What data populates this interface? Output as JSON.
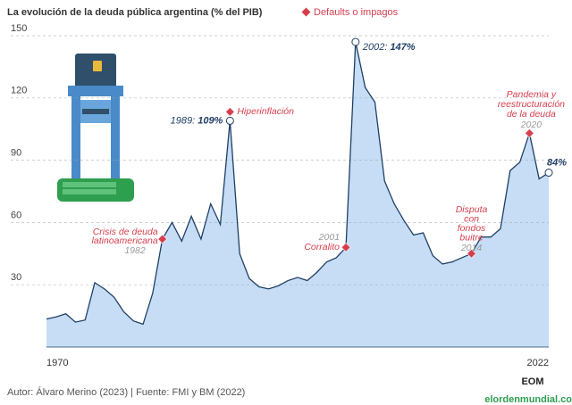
{
  "chart_data": {
    "type": "area",
    "title": "La evolución de la deuda pública argentina (% del PIB)",
    "x": [
      1970,
      1971,
      1972,
      1973,
      1974,
      1975,
      1976,
      1977,
      1978,
      1979,
      1980,
      1981,
      1982,
      1983,
      1984,
      1985,
      1986,
      1987,
      1988,
      1989,
      1990,
      1991,
      1992,
      1993,
      1994,
      1995,
      1996,
      1997,
      1998,
      1999,
      2000,
      2001,
      2002,
      2003,
      2004,
      2005,
      2006,
      2007,
      2008,
      2009,
      2010,
      2011,
      2012,
      2013,
      2014,
      2015,
      2016,
      2017,
      2018,
      2019,
      2020,
      2021,
      2022
    ],
    "series": [
      {
        "color": "#1f3f66",
        "fill": "#c6ddf5",
        "values": [
          13.5,
          14.5,
          16,
          12,
          13,
          31,
          28,
          24,
          17,
          12.6,
          11,
          26,
          52,
          60,
          51,
          63,
          52,
          69,
          59,
          109,
          45,
          33,
          29,
          28,
          29.5,
          32,
          33.5,
          32,
          36,
          41,
          43,
          48,
          147,
          125,
          118,
          80,
          69,
          61,
          54,
          55,
          44,
          40,
          41,
          43,
          45,
          53,
          53,
          57,
          85,
          89,
          103,
          81,
          84
        ],
        "value_labels": [
          null,
          null,
          null,
          null,
          null,
          null,
          null,
          null,
          null,
          null,
          null,
          null,
          null,
          null,
          null,
          null,
          null,
          null,
          null,
          "109%",
          null,
          null,
          null,
          null,
          null,
          null,
          null,
          null,
          null,
          null,
          null,
          null,
          "147%",
          null,
          null,
          null,
          null,
          null,
          null,
          null,
          null,
          null,
          null,
          null,
          null,
          null,
          null,
          null,
          null,
          null,
          null,
          null,
          "84%"
        ]
      }
    ],
    "peak_years": [
      {
        "x": 1989,
        "text": "1989:"
      },
      {
        "x": 2002,
        "text": "2002:"
      }
    ],
    "defaults": {
      "name": "Defaults o impagos",
      "color": "#d6404e",
      "annotations": [
        {
          "x": 1982,
          "lines": [
            "Crisis de deuda",
            "latinoamericana"
          ],
          "year": "1982"
        },
        {
          "x": 1989,
          "lines": [
            "Hiperinflación"
          ]
        },
        {
          "x": 2001,
          "lines": [
            "Corralito"
          ],
          "year": "2001"
        },
        {
          "x": 2014,
          "lines": [
            "Disputa",
            "con",
            "fondos",
            "buitre"
          ],
          "year": "2014"
        },
        {
          "x": 2020,
          "lines": [
            "Pandemia y",
            "reestructuración",
            "de la deuda"
          ],
          "year": "2020"
        }
      ]
    },
    "xlim": [
      1970,
      2022
    ],
    "xticks": [
      1970,
      2022
    ],
    "ylim": [
      0,
      150
    ],
    "yticks": [
      30,
      60,
      90,
      120,
      150
    ],
    "grid": true
  },
  "source": "Autor: Álvaro Merino (2023) | Fuente: FMI y BM (2022)",
  "logo": {
    "mark": "EOM",
    "site": "elordenmundial.com"
  }
}
